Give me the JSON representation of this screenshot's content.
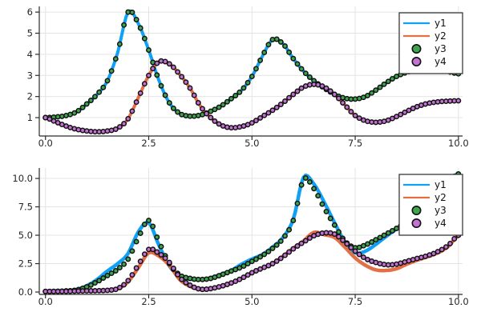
{
  "styles": {
    "background": "#ffffff",
    "grid_color": "#e4e4e4",
    "axis_color": "#2a2a2a",
    "tick_label_color": "#262626",
    "legend_border": "#3a3a3a",
    "legend_background": "#ffffff",
    "marker_edge": "#111111"
  },
  "chart_data": [
    {
      "id": "top",
      "type": "line+scatter",
      "title": "",
      "xlabel": "",
      "ylabel": "",
      "grid": true,
      "legend_position": "top-right",
      "xlim": [
        -0.15,
        10.1
      ],
      "ylim": [
        0.13,
        6.27
      ],
      "xticks": {
        "values": [
          0,
          2.5,
          5,
          7.5,
          10
        ],
        "labels": [
          "0.0",
          "2.5",
          "5.0",
          "7.5",
          "10.0"
        ]
      },
      "yticks": {
        "values": [
          1,
          2,
          3,
          4,
          5,
          6
        ],
        "labels": [
          "1",
          "2",
          "3",
          "4",
          "5",
          "6"
        ]
      },
      "x_start": 0,
      "x_step": 0.25,
      "series": [
        {
          "name": "y1",
          "type": "line",
          "color": "#10a0f5",
          "width": 4,
          "y": [
            1.0,
            1.03,
            1.1,
            1.27,
            1.65,
            2.1,
            2.75,
            4.1,
            6.0,
            5.45,
            4.2,
            2.75,
            1.7,
            1.2,
            1.07,
            1.12,
            1.3,
            1.55,
            1.9,
            2.3,
            2.95,
            3.9,
            4.7,
            4.5,
            3.8,
            3.2,
            2.75,
            2.4,
            2.1,
            1.92,
            1.88,
            2.0,
            2.3,
            2.65,
            2.95,
            3.15,
            3.25,
            3.3,
            3.28,
            3.18,
            3.08
          ]
        },
        {
          "name": "y2",
          "type": "line",
          "color": "#e36f47",
          "width": 4,
          "y": [
            1.0,
            0.8,
            0.6,
            0.45,
            0.37,
            0.33,
            0.37,
            0.5,
            0.95,
            1.95,
            3.0,
            3.65,
            3.55,
            3.05,
            2.4,
            1.55,
            1.0,
            0.65,
            0.52,
            0.58,
            0.75,
            1.05,
            1.35,
            1.7,
            2.1,
            2.45,
            2.58,
            2.45,
            2.1,
            1.6,
            1.1,
            0.85,
            0.78,
            0.85,
            1.05,
            1.3,
            1.52,
            1.67,
            1.75,
            1.78,
            1.8
          ]
        },
        {
          "name": "y3",
          "type": "scatter",
          "fill": "#3ea44e",
          "edge": "#111111",
          "marker_step": 0.1,
          "y": [
            1.0,
            1.03,
            1.1,
            1.27,
            1.65,
            2.1,
            2.75,
            4.1,
            6.0,
            5.45,
            4.2,
            2.75,
            1.7,
            1.2,
            1.07,
            1.12,
            1.3,
            1.55,
            1.9,
            2.3,
            2.95,
            3.9,
            4.7,
            4.5,
            3.8,
            3.2,
            2.75,
            2.4,
            2.1,
            1.92,
            1.88,
            2.0,
            2.3,
            2.65,
            2.95,
            3.15,
            3.25,
            3.3,
            3.28,
            3.18,
            3.08
          ]
        },
        {
          "name": "y4",
          "type": "scatter",
          "fill": "#c371d2",
          "edge": "#111111",
          "marker_step": 0.1,
          "y": [
            1.0,
            0.8,
            0.6,
            0.45,
            0.37,
            0.33,
            0.37,
            0.5,
            0.95,
            1.95,
            3.0,
            3.65,
            3.55,
            3.05,
            2.4,
            1.55,
            1.0,
            0.65,
            0.52,
            0.58,
            0.75,
            1.05,
            1.35,
            1.7,
            2.1,
            2.45,
            2.58,
            2.45,
            2.1,
            1.6,
            1.1,
            0.85,
            0.78,
            0.85,
            1.05,
            1.3,
            1.52,
            1.67,
            1.75,
            1.78,
            1.8
          ]
        }
      ]
    },
    {
      "id": "bottom",
      "type": "line+scatter",
      "title": "",
      "xlabel": "",
      "ylabel": "",
      "grid": true,
      "legend_position": "top-right",
      "xlim": [
        -0.15,
        10.1
      ],
      "ylim": [
        -0.21,
        10.92
      ],
      "xticks": {
        "values": [
          0,
          2.5,
          5,
          7.5,
          10
        ],
        "labels": [
          "0.0",
          "2.5",
          "5.0",
          "7.5",
          "10.0"
        ]
      },
      "yticks": {
        "values": [
          0,
          2.5,
          5,
          7.5,
          10
        ],
        "labels": [
          "0.0",
          "2.5",
          "5.0",
          "7.5",
          "10.0"
        ]
      },
      "x_start": 0,
      "x_step": 0.25,
      "series": [
        {
          "name": "y1",
          "type": "line",
          "color": "#10a0f5",
          "width": 4.5,
          "y": [
            0.05,
            0.07,
            0.12,
            0.22,
            0.55,
            1.1,
            1.85,
            2.5,
            3.4,
            5.3,
            6.1,
            4.1,
            2.3,
            1.4,
            1.15,
            1.1,
            1.25,
            1.55,
            1.9,
            2.45,
            2.9,
            3.3,
            3.95,
            4.8,
            6.4,
            10.1,
            9.5,
            7.9,
            6.1,
            4.4,
            3.45,
            3.6,
            4.2,
            4.9,
            5.55,
            6.2,
            7.05,
            7.95,
            8.85,
            9.75,
            10.45
          ]
        },
        {
          "name": "y2",
          "type": "line",
          "color": "#e36f47",
          "width": 4.5,
          "y": [
            0.04,
            0.04,
            0.05,
            0.07,
            0.09,
            0.11,
            0.14,
            0.28,
            0.9,
            2.15,
            3.45,
            3.15,
            2.35,
            1.1,
            0.5,
            0.22,
            0.28,
            0.5,
            0.8,
            1.2,
            1.7,
            2.1,
            2.5,
            3.15,
            3.85,
            4.5,
            5.25,
            5.05,
            4.8,
            3.95,
            3.0,
            2.35,
            1.95,
            1.9,
            2.05,
            2.45,
            2.8,
            3.1,
            3.45,
            4.0,
            4.95
          ]
        },
        {
          "name": "y3",
          "type": "scatter",
          "fill": "#3ea44e",
          "edge": "#111111",
          "marker_step": 0.1,
          "y": [
            0.05,
            0.06,
            0.1,
            0.17,
            0.45,
            0.9,
            1.45,
            2.0,
            2.9,
            4.8,
            6.3,
            4.4,
            2.5,
            1.5,
            1.2,
            1.1,
            1.2,
            1.5,
            1.85,
            2.2,
            2.7,
            3.2,
            3.85,
            4.7,
            6.3,
            9.9,
            9.1,
            7.4,
            5.9,
            4.5,
            3.9,
            4.15,
            4.6,
            5.1,
            5.6,
            6.2,
            7.0,
            7.9,
            8.8,
            9.7,
            10.4
          ]
        },
        {
          "name": "y4",
          "type": "scatter",
          "fill": "#c371d2",
          "edge": "#111111",
          "marker_step": 0.1,
          "y": [
            0.05,
            0.05,
            0.06,
            0.08,
            0.1,
            0.12,
            0.15,
            0.3,
            1.0,
            2.4,
            3.75,
            3.4,
            2.6,
            1.3,
            0.6,
            0.25,
            0.3,
            0.5,
            0.8,
            1.2,
            1.7,
            2.1,
            2.5,
            3.1,
            3.8,
            4.4,
            4.95,
            5.2,
            5.1,
            4.4,
            3.6,
            2.95,
            2.6,
            2.4,
            2.45,
            2.7,
            2.95,
            3.2,
            3.55,
            4.1,
            5.0
          ]
        }
      ]
    }
  ]
}
